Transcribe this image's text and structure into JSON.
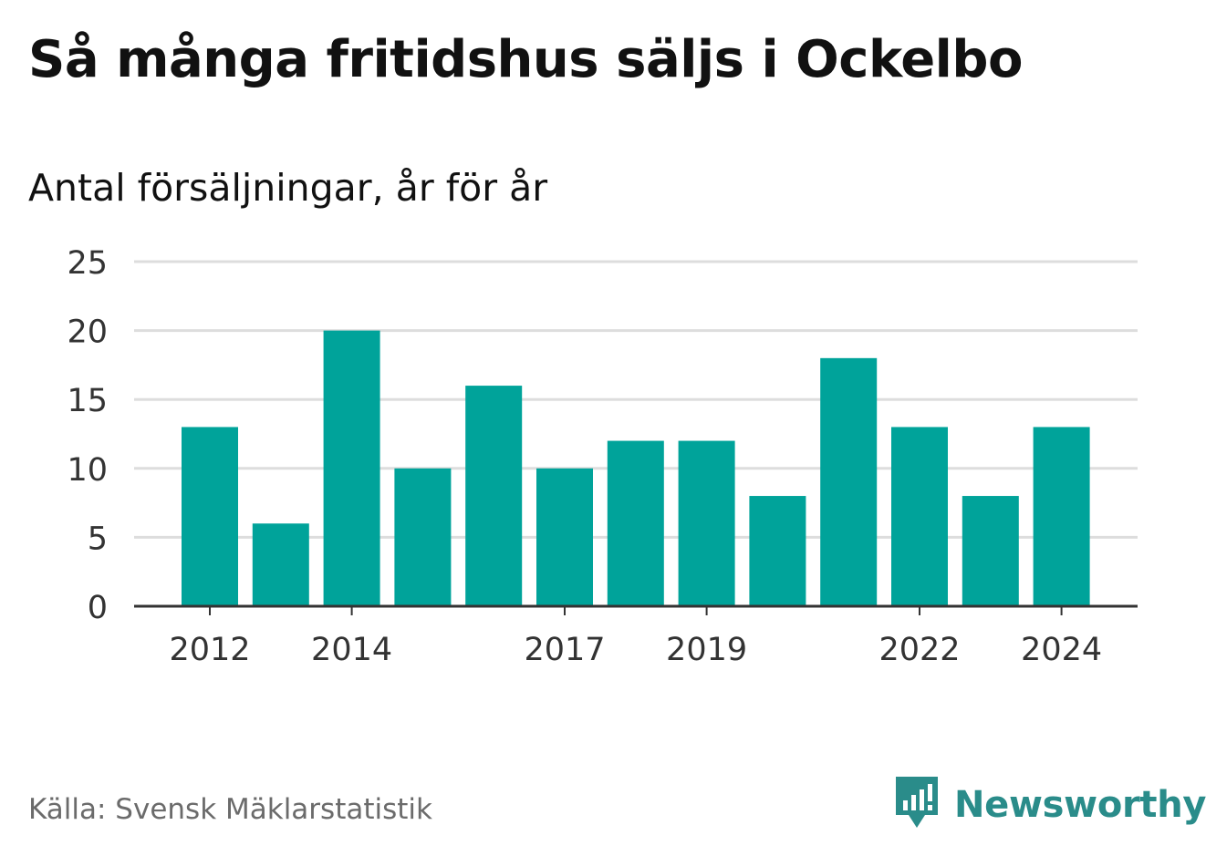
{
  "header": {
    "title": "Så många fritidshus säljs i Ockelbo",
    "subtitle": "Antal försäljningar, år för år"
  },
  "footer": {
    "source": "Källa: Svensk Mäklarstatistik",
    "brand_name": "Newsworthy",
    "brand_icon": "newsworthy-logo-icon"
  },
  "colors": {
    "bar": "#00a39a",
    "grid": "#dddddd",
    "axis": "#333333",
    "brand": "#2a8c8a"
  },
  "chart_data": {
    "type": "bar",
    "title": "Så många fritidshus säljs i Ockelbo",
    "subtitle": "Antal försäljningar, år för år",
    "xlabel": "",
    "ylabel": "",
    "categories": [
      "2012",
      "2013",
      "2014",
      "2015",
      "2016",
      "2017",
      "2018",
      "2019",
      "2020",
      "2021",
      "2022",
      "2023",
      "2024"
    ],
    "values": [
      13,
      6,
      20,
      10,
      16,
      10,
      12,
      12,
      8,
      18,
      13,
      8,
      13
    ],
    "x_tick_labels": [
      "2012",
      "2014",
      "2017",
      "2019",
      "2022",
      "2024"
    ],
    "y_ticks": [
      0,
      5,
      10,
      15,
      20,
      25
    ],
    "ylim": [
      0,
      25
    ],
    "grid": true,
    "legend": "none"
  }
}
